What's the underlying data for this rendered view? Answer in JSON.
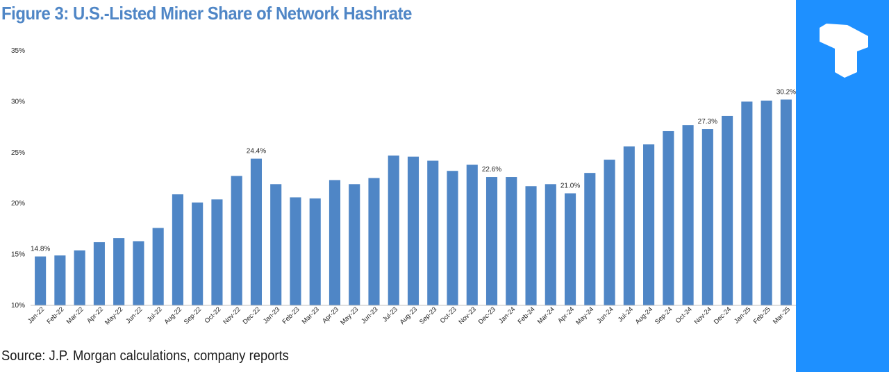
{
  "figure_title": "Figure 3: U.S.-Listed Miner Share of Network Hashrate",
  "source_note": "Source: J.P. Morgan calculations, company reports",
  "brand": {
    "logo_icon": "t-block-logo-icon",
    "panel_color": "#1e90ff"
  },
  "colors": {
    "bar": "#4f86c6",
    "title": "#4f86c6",
    "axis_text": "#222222"
  },
  "chart_data": {
    "type": "bar",
    "title": "Figure 3: U.S.-Listed Miner Share of Network Hashrate",
    "xlabel": "",
    "ylabel": "",
    "ylim": [
      10,
      35
    ],
    "yticks": [
      10,
      15,
      20,
      25,
      30,
      35
    ],
    "ytick_labels": [
      "10%",
      "15%",
      "20%",
      "25%",
      "30%",
      "35%"
    ],
    "grid": false,
    "categories": [
      "Jan-22",
      "Feb-22",
      "Mar-22",
      "Apr-22",
      "May-22",
      "Jun-22",
      "Jul-22",
      "Aug-22",
      "Sep-22",
      "Oct-22",
      "Nov-22",
      "Dec-22",
      "Jan-23",
      "Feb-23",
      "Mar-23",
      "Apr-23",
      "May-23",
      "Jun-23",
      "Jul-23",
      "Aug-23",
      "Sep-23",
      "Oct-23",
      "Nov-23",
      "Dec-23",
      "Jan-24",
      "Feb-24",
      "Mar-24",
      "Apr-24",
      "May-24",
      "Jun-24",
      "Jul-24",
      "Aug-24",
      "Sep-24",
      "Oct-24",
      "Nov-24",
      "Dec-24",
      "Jan-25",
      "Feb-25",
      "Mar-25"
    ],
    "values": [
      14.8,
      14.9,
      15.4,
      16.2,
      16.6,
      16.3,
      17.6,
      20.9,
      20.1,
      20.4,
      22.7,
      24.4,
      21.9,
      20.6,
      20.5,
      22.3,
      21.9,
      22.5,
      24.7,
      24.6,
      24.2,
      23.2,
      23.8,
      22.6,
      22.6,
      21.7,
      21.9,
      21.0,
      23.0,
      24.3,
      25.6,
      25.8,
      27.1,
      27.7,
      27.3,
      28.6,
      30.0,
      30.1,
      30.2
    ],
    "data_labels": [
      {
        "category": "Jan-22",
        "text": "14.8%"
      },
      {
        "category": "Dec-22",
        "text": "24.4%"
      },
      {
        "category": "Dec-23",
        "text": "22.6%"
      },
      {
        "category": "Apr-24",
        "text": "21.0%"
      },
      {
        "category": "Nov-24",
        "text": "27.3%"
      },
      {
        "category": "Mar-25",
        "text": "30.2%"
      }
    ]
  }
}
